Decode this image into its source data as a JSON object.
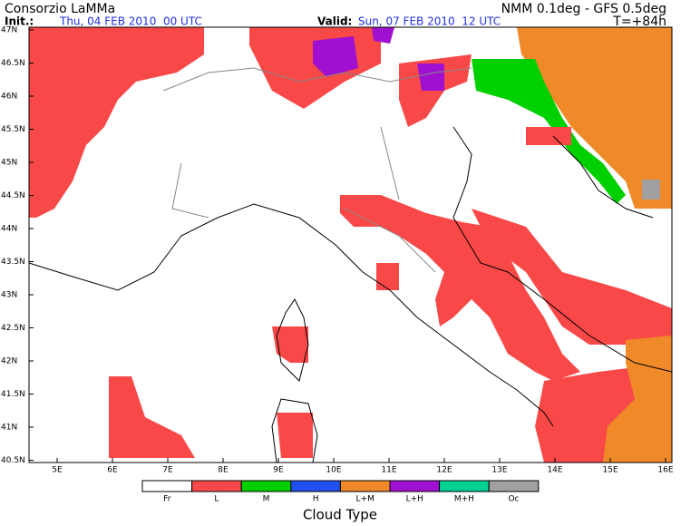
{
  "header": {
    "title": "Consorzio LaMMa",
    "model": "NMM 0.1deg - GFS 0.5deg",
    "init_label": "Init.:",
    "init_value": "Thu, 04 FEB 2010  00 UTC",
    "valid_label": "Valid:",
    "valid_value": "Sun, 07 FEB 2010  12 UTC",
    "lead": "T=+84h"
  },
  "map": {
    "lat_labels": [
      "47N",
      "46.5N",
      "46N",
      "45.5N",
      "45N",
      "44.5N",
      "44N",
      "43.5N",
      "43N",
      "42.5N",
      "42N",
      "41.5N",
      "41N",
      "40.5N"
    ],
    "lon_labels": [
      "5E",
      "6E",
      "7E",
      "8E",
      "9E",
      "10E",
      "11E",
      "12E",
      "13E",
      "14E",
      "15E",
      "16E"
    ]
  },
  "legend": {
    "title": "Cloud Type",
    "items": [
      {
        "label": "Fr",
        "color": "#ffffff"
      },
      {
        "label": "L",
        "color": "#f94848"
      },
      {
        "label": "M",
        "color": "#00d000"
      },
      {
        "label": "H",
        "color": "#2050f0"
      },
      {
        "label": "L+M",
        "color": "#f08a28"
      },
      {
        "label": "L+H",
        "color": "#a010d0"
      },
      {
        "label": "M+H",
        "color": "#00d090"
      },
      {
        "label": "Oc",
        "color": "#a0a0a0"
      }
    ]
  }
}
